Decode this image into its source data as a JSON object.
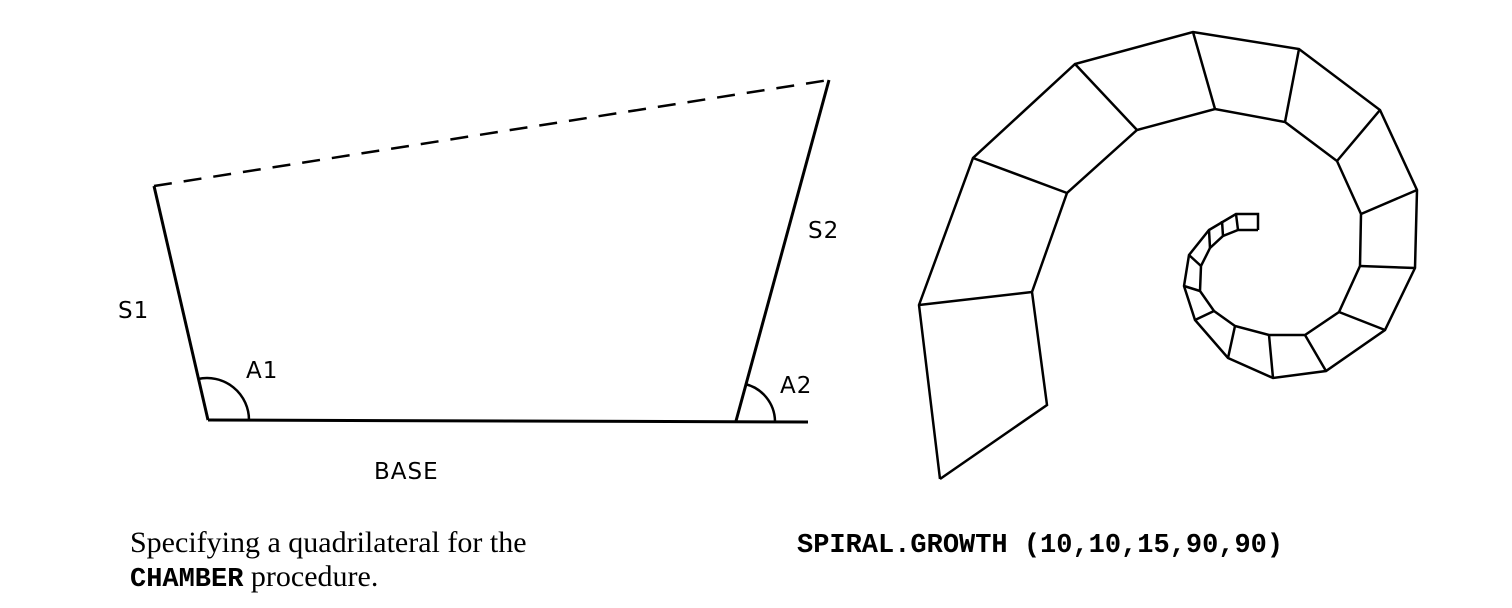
{
  "quadrilateral": {
    "labels": {
      "s1": "S1",
      "s2": "S2",
      "a1": "A1",
      "a2": "A2",
      "base": "BASE"
    },
    "caption": {
      "line1": "Specifying a quadrilateral for the",
      "keyword": "CHAMBER",
      "line2_rest": " procedure."
    }
  },
  "spiral": {
    "caption": {
      "name": "SPIRAL.GROWTH",
      "args": " (10,10,15,90,90)"
    }
  },
  "colors": {
    "ink": "#000000",
    "background": "#ffffff"
  }
}
